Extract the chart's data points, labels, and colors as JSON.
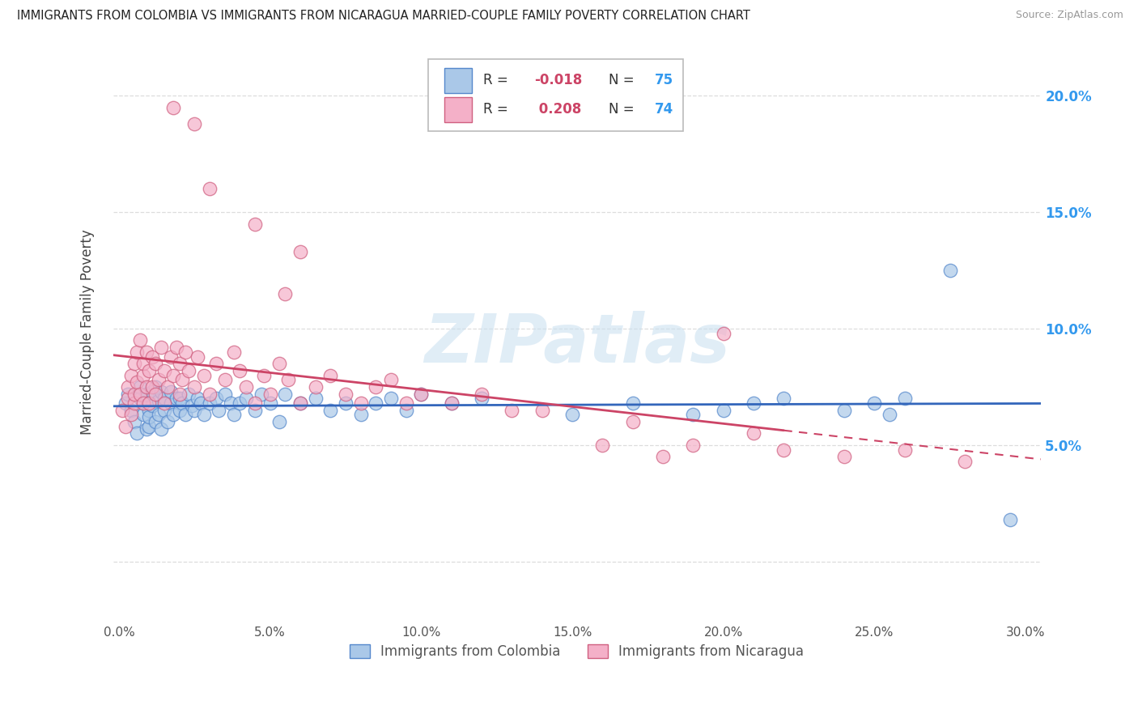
{
  "title": "IMMIGRANTS FROM COLOMBIA VS IMMIGRANTS FROM NICARAGUA MARRIED-COUPLE FAMILY POVERTY CORRELATION CHART",
  "source": "Source: ZipAtlas.com",
  "xlabel_colombia": "Immigrants from Colombia",
  "xlabel_nicaragua": "Immigrants from Nicaragua",
  "ylabel": "Married-Couple Family Poverty",
  "colombia_R": -0.018,
  "colombia_N": 75,
  "nicaragua_R": 0.208,
  "nicaragua_N": 74,
  "colombia_color": "#aac8e8",
  "nicaragua_color": "#f4b0c8",
  "colombia_edge_color": "#5588cc",
  "nicaragua_edge_color": "#d06080",
  "colombia_line_color": "#3366bb",
  "nicaragua_line_color": "#cc4466",
  "watermark": "ZIPatlas",
  "xlim_min": -0.002,
  "xlim_max": 0.305,
  "ylim_min": -0.025,
  "ylim_max": 0.222,
  "xtick_vals": [
    0.0,
    0.05,
    0.1,
    0.15,
    0.2,
    0.25,
    0.3
  ],
  "xtick_labels": [
    "0.0%",
    "5.0%",
    "10.0%",
    "15.0%",
    "20.0%",
    "25.0%",
    "30.0%"
  ],
  "ytick_vals": [
    0.0,
    0.05,
    0.1,
    0.15,
    0.2
  ],
  "ytick_right_labels": [
    "",
    "5.0%",
    "10.0%",
    "15.0%",
    "20.0%"
  ],
  "colombia_x": [
    0.002,
    0.003,
    0.004,
    0.005,
    0.006,
    0.007,
    0.007,
    0.008,
    0.008,
    0.009,
    0.009,
    0.01,
    0.01,
    0.01,
    0.011,
    0.011,
    0.012,
    0.012,
    0.013,
    0.013,
    0.014,
    0.014,
    0.015,
    0.015,
    0.016,
    0.017,
    0.017,
    0.018,
    0.019,
    0.02,
    0.02,
    0.021,
    0.022,
    0.023,
    0.024,
    0.025,
    0.026,
    0.027,
    0.028,
    0.03,
    0.032,
    0.033,
    0.035,
    0.037,
    0.038,
    0.04,
    0.042,
    0.045,
    0.047,
    0.05,
    0.053,
    0.055,
    0.06,
    0.065,
    0.07,
    0.075,
    0.08,
    0.085,
    0.09,
    0.095,
    0.1,
    0.11,
    0.12,
    0.15,
    0.17,
    0.19,
    0.2,
    0.21,
    0.22,
    0.24,
    0.25,
    0.255,
    0.26,
    0.275,
    0.295
  ],
  "colombia_y": [
    0.068,
    0.072,
    0.065,
    0.06,
    0.055,
    0.07,
    0.075,
    0.063,
    0.068,
    0.057,
    0.072,
    0.065,
    0.058,
    0.062,
    0.067,
    0.073,
    0.06,
    0.075,
    0.063,
    0.069,
    0.057,
    0.073,
    0.065,
    0.07,
    0.06,
    0.068,
    0.073,
    0.063,
    0.07,
    0.065,
    0.07,
    0.068,
    0.063,
    0.072,
    0.067,
    0.065,
    0.07,
    0.068,
    0.063,
    0.068,
    0.07,
    0.065,
    0.072,
    0.068,
    0.063,
    0.068,
    0.07,
    0.065,
    0.072,
    0.068,
    0.06,
    0.072,
    0.068,
    0.07,
    0.065,
    0.068,
    0.063,
    0.068,
    0.07,
    0.065,
    0.072,
    0.068,
    0.07,
    0.063,
    0.068,
    0.063,
    0.065,
    0.068,
    0.07,
    0.065,
    0.068,
    0.063,
    0.07,
    0.125,
    0.018
  ],
  "nicaragua_x": [
    0.001,
    0.002,
    0.003,
    0.003,
    0.004,
    0.004,
    0.005,
    0.005,
    0.005,
    0.006,
    0.006,
    0.007,
    0.007,
    0.008,
    0.008,
    0.008,
    0.009,
    0.009,
    0.01,
    0.01,
    0.011,
    0.011,
    0.012,
    0.012,
    0.013,
    0.014,
    0.015,
    0.015,
    0.016,
    0.017,
    0.018,
    0.019,
    0.02,
    0.02,
    0.021,
    0.022,
    0.023,
    0.025,
    0.026,
    0.028,
    0.03,
    0.032,
    0.035,
    0.038,
    0.04,
    0.042,
    0.045,
    0.048,
    0.05,
    0.053,
    0.056,
    0.06,
    0.065,
    0.07,
    0.075,
    0.08,
    0.085,
    0.09,
    0.095,
    0.1,
    0.11,
    0.12,
    0.13,
    0.14,
    0.16,
    0.17,
    0.18,
    0.19,
    0.2,
    0.21,
    0.22,
    0.24,
    0.26,
    0.28
  ],
  "nicaragua_y": [
    0.065,
    0.058,
    0.07,
    0.075,
    0.063,
    0.08,
    0.068,
    0.072,
    0.085,
    0.077,
    0.09,
    0.072,
    0.095,
    0.068,
    0.08,
    0.085,
    0.075,
    0.09,
    0.068,
    0.082,
    0.075,
    0.088,
    0.072,
    0.085,
    0.078,
    0.092,
    0.068,
    0.082,
    0.075,
    0.088,
    0.08,
    0.092,
    0.072,
    0.085,
    0.078,
    0.09,
    0.082,
    0.075,
    0.088,
    0.08,
    0.072,
    0.085,
    0.078,
    0.09,
    0.082,
    0.075,
    0.068,
    0.08,
    0.072,
    0.085,
    0.078,
    0.068,
    0.075,
    0.08,
    0.072,
    0.068,
    0.075,
    0.078,
    0.068,
    0.072,
    0.068,
    0.072,
    0.065,
    0.065,
    0.05,
    0.06,
    0.045,
    0.05,
    0.098,
    0.055,
    0.048,
    0.045,
    0.048,
    0.043
  ]
}
